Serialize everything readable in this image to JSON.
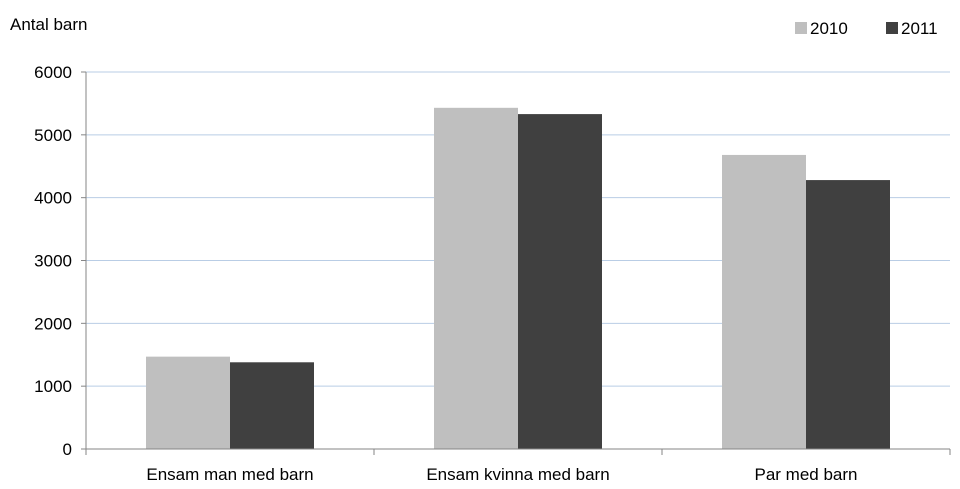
{
  "chart_data": {
    "type": "bar",
    "ylabel": "Antal barn",
    "categories": [
      "Ensam man med barn",
      "Ensam kvinna med barn",
      "Par med barn"
    ],
    "series": [
      {
        "name": "2010",
        "color": "#bfbfbf",
        "values": [
          1470,
          5430,
          4680
        ]
      },
      {
        "name": "2011",
        "color": "#404040",
        "values": [
          1380,
          5330,
          4280
        ]
      }
    ],
    "ylim": [
      0,
      6000
    ],
    "yticks": [
      0,
      1000,
      2000,
      3000,
      4000,
      5000,
      6000
    ],
    "grid": true,
    "gridline_color": "#b9cde5",
    "legend_position": "top-right"
  }
}
